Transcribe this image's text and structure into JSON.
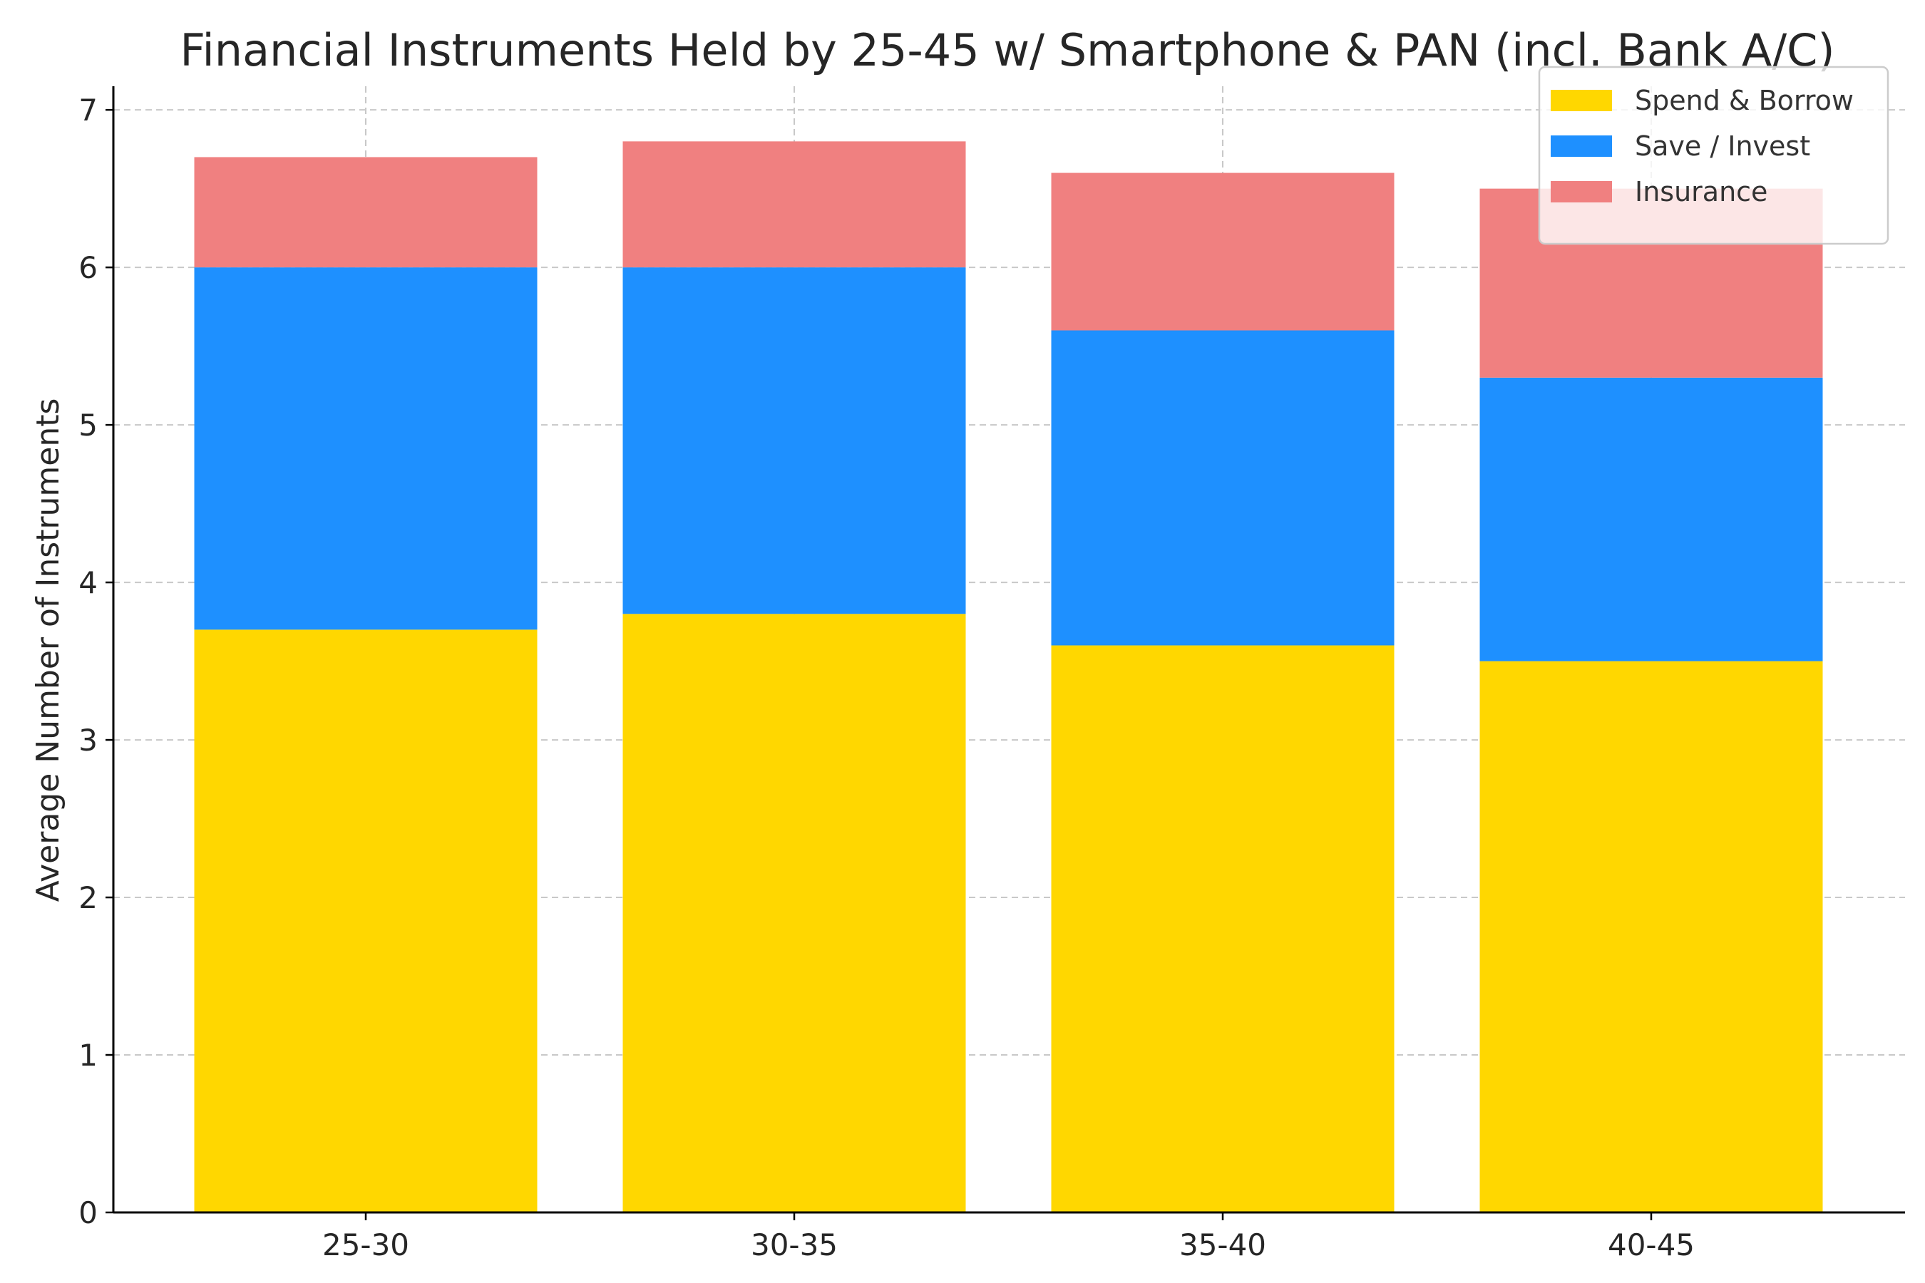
{
  "chart_data": {
    "type": "bar",
    "stacked": true,
    "title": "Financial Instruments Held by 25-45 w/ Smartphone & PAN (incl. Bank A/C)",
    "xlabel": "",
    "ylabel": "Average Number of Instruments",
    "ylim": [
      0,
      7.15
    ],
    "yticks": [
      0,
      1,
      2,
      3,
      4,
      5,
      6,
      7
    ],
    "grid": true,
    "legend_position": "top-right",
    "categories": [
      "25-30",
      "30-35",
      "35-40",
      "40-45"
    ],
    "series": [
      {
        "name": "Spend & Borrow",
        "color": "#FFD700",
        "values": [
          3.7,
          3.8,
          3.6,
          3.5
        ]
      },
      {
        "name": "Save / Invest",
        "color": "#1E90FF",
        "values": [
          2.3,
          2.2,
          2.0,
          1.8
        ]
      },
      {
        "name": "Insurance",
        "color": "#F08080",
        "values": [
          0.7,
          0.8,
          1.0,
          1.2
        ]
      }
    ]
  }
}
